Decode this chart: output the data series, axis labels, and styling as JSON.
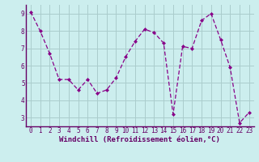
{
  "x": [
    0,
    1,
    2,
    3,
    4,
    5,
    6,
    7,
    8,
    9,
    10,
    11,
    12,
    13,
    14,
    15,
    16,
    17,
    18,
    19,
    20,
    21,
    22,
    23
  ],
  "y": [
    9.1,
    8.0,
    6.7,
    5.2,
    5.2,
    4.6,
    5.2,
    4.4,
    4.6,
    5.3,
    6.5,
    7.4,
    8.1,
    7.9,
    7.3,
    3.2,
    7.1,
    7.0,
    8.6,
    9.0,
    7.5,
    5.9,
    2.7,
    3.3
  ],
  "xlabel": "Windchill (Refroidissement éolien,°C)",
  "ylim": [
    2.5,
    9.5
  ],
  "xlim": [
    -0.5,
    23.5
  ],
  "line_color": "#880088",
  "marker_color": "#880088",
  "bg_color": "#cceeee",
  "grid_color": "#aacccc",
  "yticks": [
    3,
    4,
    5,
    6,
    7,
    8,
    9
  ],
  "xticks": [
    0,
    1,
    2,
    3,
    4,
    5,
    6,
    7,
    8,
    9,
    10,
    11,
    12,
    13,
    14,
    15,
    16,
    17,
    18,
    19,
    20,
    21,
    22,
    23
  ],
  "tick_color": "#660066",
  "xlabel_fontsize": 6.5,
  "ylabel_fontsize": 6.5,
  "tick_fontsize": 5.5
}
